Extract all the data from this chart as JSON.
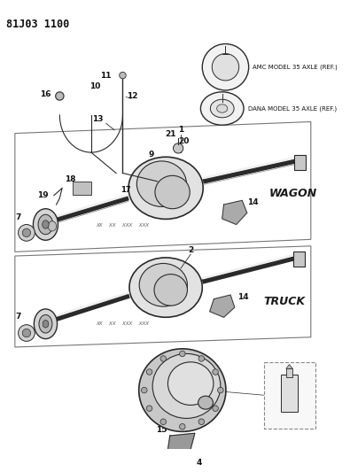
{
  "title": "81J03 1100",
  "bg_color": "#ffffff",
  "amc_label": "AMC MODEL 35 AXLE (REF.)",
  "dana_label": "DANA MODEL 35 AXLE (REF.)",
  "wagon_label": "WAGON",
  "truck_label": "TRUCK",
  "fig_w": 3.95,
  "fig_h": 5.33,
  "dpi": 100
}
